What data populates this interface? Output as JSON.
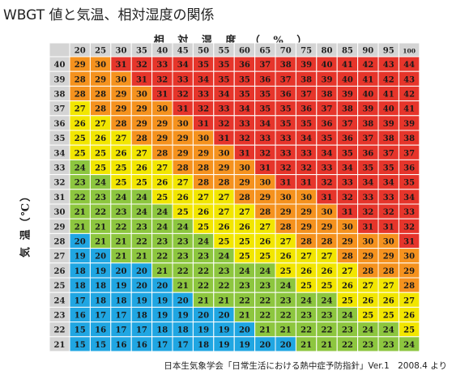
{
  "title": "WBGT 値と気温、相対湿度の関係",
  "source": "日本生気象学会「日常生活における熱中症予防指針」Ver.1　2008.4 より",
  "colors": {
    "blue": "#20a6e2",
    "green": "#8dc63f",
    "yellow": "#f2e600",
    "orange": "#f5921e",
    "red": "#e6352b",
    "header": "#d4d4d4",
    "line": "#ffffff"
  },
  "chart_data": {
    "type": "heatmap",
    "xlabel": "相 対 湿 度 （ % ）",
    "ylabel": "気 温（℃）",
    "x": [
      "20",
      "25",
      "30",
      "35",
      "40",
      "45",
      "50",
      "55",
      "60",
      "65",
      "70",
      "75",
      "80",
      "85",
      "90",
      "95",
      "100"
    ],
    "y": [
      "40",
      "39",
      "38",
      "37",
      "36",
      "35",
      "34",
      "33",
      "32",
      "31",
      "30",
      "29",
      "28",
      "27",
      "26",
      "25",
      "24",
      "23",
      "22",
      "21"
    ],
    "values": [
      [
        29,
        30,
        31,
        32,
        33,
        34,
        35,
        35,
        36,
        37,
        38,
        39,
        40,
        41,
        42,
        43,
        44
      ],
      [
        28,
        29,
        30,
        31,
        32,
        33,
        34,
        35,
        35,
        36,
        37,
        38,
        39,
        40,
        41,
        42,
        43
      ],
      [
        28,
        28,
        29,
        30,
        31,
        32,
        33,
        34,
        35,
        35,
        36,
        37,
        38,
        39,
        40,
        41,
        42
      ],
      [
        27,
        28,
        29,
        29,
        30,
        31,
        32,
        33,
        34,
        35,
        35,
        36,
        37,
        38,
        39,
        40,
        41
      ],
      [
        26,
        27,
        28,
        29,
        29,
        30,
        31,
        32,
        33,
        34,
        35,
        35,
        36,
        37,
        38,
        39,
        39
      ],
      [
        25,
        26,
        27,
        28,
        29,
        29,
        30,
        31,
        32,
        33,
        33,
        34,
        35,
        36,
        37,
        38,
        38
      ],
      [
        25,
        25,
        26,
        27,
        28,
        29,
        29,
        30,
        31,
        32,
        33,
        33,
        34,
        35,
        36,
        37,
        37
      ],
      [
        24,
        25,
        25,
        26,
        27,
        28,
        28,
        29,
        30,
        31,
        32,
        32,
        33,
        34,
        35,
        35,
        36
      ],
      [
        23,
        24,
        25,
        25,
        26,
        27,
        28,
        28,
        29,
        30,
        31,
        31,
        32,
        33,
        34,
        34,
        35
      ],
      [
        22,
        23,
        24,
        24,
        25,
        26,
        27,
        27,
        28,
        29,
        30,
        30,
        31,
        32,
        33,
        33,
        34
      ],
      [
        21,
        22,
        23,
        24,
        24,
        25,
        26,
        27,
        27,
        28,
        29,
        29,
        30,
        31,
        32,
        32,
        33
      ],
      [
        21,
        21,
        22,
        23,
        24,
        24,
        25,
        26,
        26,
        27,
        28,
        29,
        29,
        30,
        31,
        31,
        32
      ],
      [
        20,
        21,
        21,
        22,
        23,
        23,
        24,
        25,
        25,
        26,
        27,
        28,
        28,
        29,
        30,
        30,
        31
      ],
      [
        19,
        20,
        21,
        21,
        22,
        23,
        23,
        24,
        25,
        25,
        26,
        27,
        27,
        28,
        29,
        29,
        30
      ],
      [
        18,
        19,
        20,
        20,
        21,
        22,
        22,
        23,
        24,
        24,
        25,
        26,
        26,
        27,
        28,
        28,
        29
      ],
      [
        18,
        18,
        19,
        20,
        20,
        21,
        22,
        22,
        23,
        23,
        24,
        25,
        25,
        26,
        27,
        27,
        28
      ],
      [
        17,
        18,
        18,
        19,
        19,
        20,
        21,
        21,
        22,
        22,
        23,
        24,
        24,
        25,
        26,
        26,
        27
      ],
      [
        16,
        17,
        17,
        18,
        19,
        19,
        20,
        20,
        21,
        22,
        22,
        23,
        23,
        24,
        25,
        25,
        26
      ],
      [
        15,
        16,
        17,
        17,
        18,
        18,
        19,
        19,
        20,
        21,
        21,
        22,
        22,
        23,
        24,
        24,
        25
      ],
      [
        15,
        15,
        16,
        16,
        17,
        17,
        18,
        19,
        19,
        20,
        20,
        21,
        21,
        22,
        23,
        23,
        24
      ]
    ],
    "thresholds": [
      {
        "max": 20.9,
        "color": "blue"
      },
      {
        "max": 24.9,
        "color": "green"
      },
      {
        "max": 27.9,
        "color": "yellow"
      },
      {
        "max": 30.9,
        "color": "orange"
      },
      {
        "max": 99,
        "color": "red"
      }
    ]
  }
}
